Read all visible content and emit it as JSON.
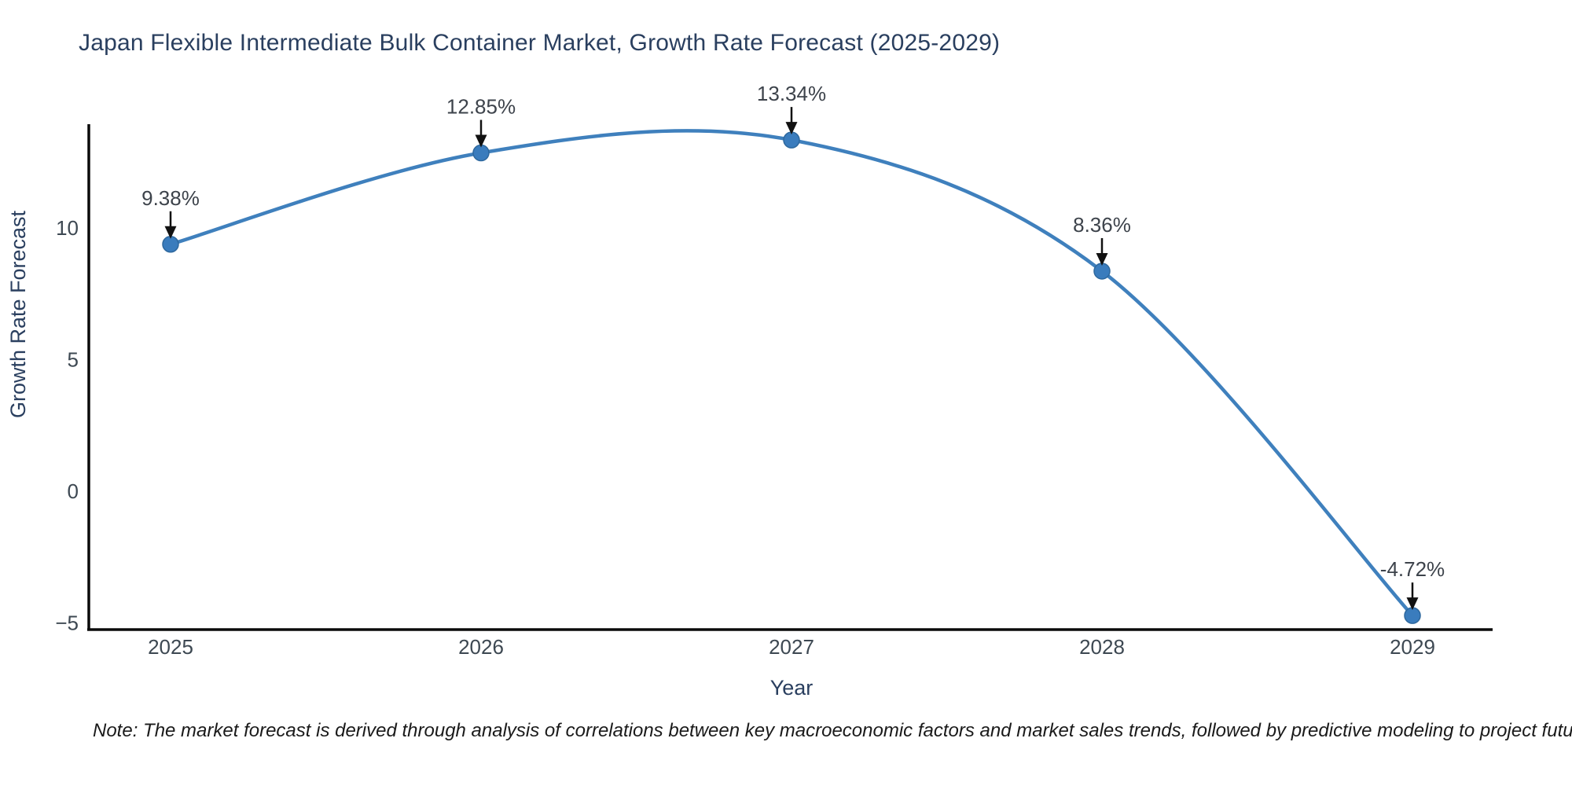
{
  "title": "Japan Flexible Intermediate Bulk Container Market, Growth Rate Forecast (2025-2029)",
  "note": "Note: The market forecast is derived through analysis of correlations between key macroeconomic factors and market sales trends, followed by predictive modeling to project future sales",
  "chart_data": {
    "type": "line",
    "title": "Japan Flexible Intermediate Bulk Container Market, Growth Rate Forecast (2025-2029)",
    "xlabel": "Year",
    "ylabel": "Growth Rate Forecast",
    "x": [
      2025,
      2026,
      2027,
      2028,
      2029
    ],
    "x_tick_labels": [
      "2025",
      "2026",
      "2027",
      "2028",
      "2029"
    ],
    "values": [
      9.38,
      12.85,
      13.34,
      8.36,
      -4.72
    ],
    "point_labels": [
      "9.38%",
      "12.85%",
      "13.34%",
      "8.36%",
      "-4.72%"
    ],
    "y_ticks": [
      10,
      5,
      0,
      -5
    ],
    "y_tick_labels": [
      "10",
      "5",
      "0",
      "−5"
    ],
    "ylim": [
      -5.3,
      13.9
    ],
    "grid": false,
    "legend_position": "none",
    "line_shape": "spline",
    "annotation_style": "value labels with black down-arrows above each marker",
    "colors": {
      "line": "#3f80bd",
      "marker": "#3a7cbd",
      "marker_edge": "#2e689e",
      "arrow": "#111111",
      "title_text": "#2a3f5f",
      "axis_label_text": "#2a3f5f",
      "tick_text": "#3d4852",
      "annotation_text": "#3d434b",
      "axis_line": "#0a0a0a",
      "note_text": "#1a1a1a",
      "background": "#ffffff"
    }
  }
}
